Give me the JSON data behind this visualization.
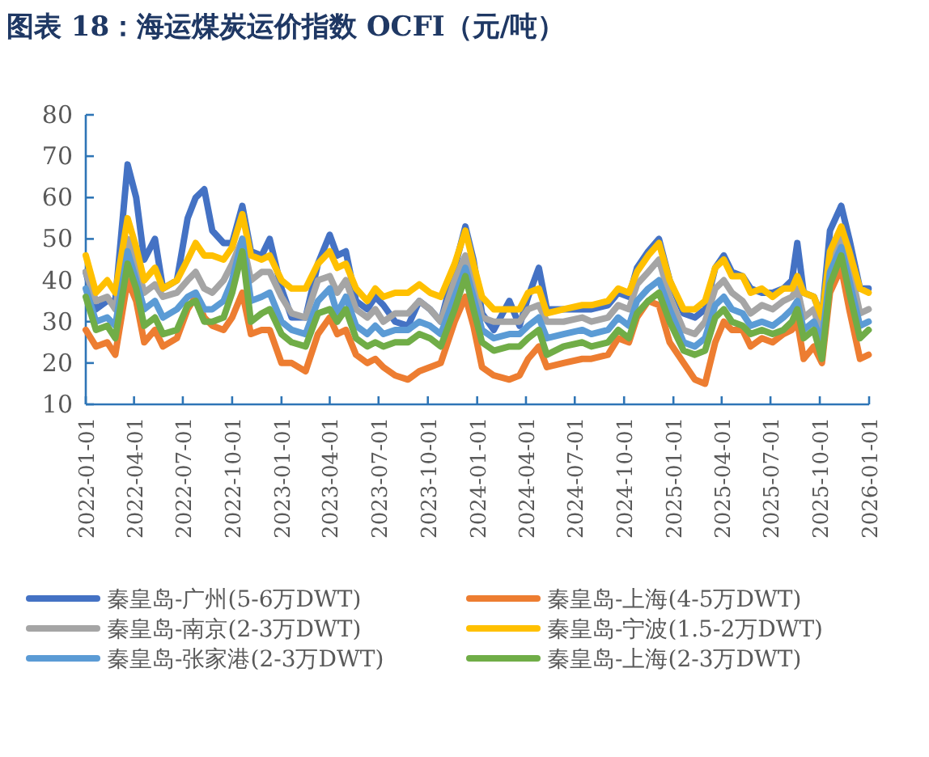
{
  "chart_data": {
    "type": "line",
    "title": "图表 18：海运煤炭运价指数 OCFI（元/吨）",
    "x": [
      "2022-01-01",
      "2022-01-20",
      "2022-02-10",
      "2022-02-25",
      "2022-03-20",
      "2022-04-05",
      "2022-04-20",
      "2022-05-10",
      "2022-05-25",
      "2022-06-20",
      "2022-07-10",
      "2022-07-25",
      "2022-08-10",
      "2022-08-25",
      "2022-09-15",
      "2022-10-01",
      "2022-10-20",
      "2022-11-05",
      "2022-11-25",
      "2022-12-10",
      "2023-01-01",
      "2023-01-20",
      "2023-02-15",
      "2023-03-10",
      "2023-04-01",
      "2023-04-15",
      "2023-05-01",
      "2023-05-20",
      "2023-06-10",
      "2023-06-25",
      "2023-07-10",
      "2023-08-01",
      "2023-08-25",
      "2023-09-15",
      "2023-10-05",
      "2023-10-25",
      "2023-11-20",
      "2023-12-10",
      "2023-12-25",
      "2024-01-10",
      "2024-02-01",
      "2024-03-01",
      "2024-03-20",
      "2024-04-05",
      "2024-04-25",
      "2024-05-10",
      "2024-06-10",
      "2024-07-15",
      "2024-08-01",
      "2024-09-01",
      "2024-09-20",
      "2024-10-10",
      "2024-10-25",
      "2024-11-15",
      "2024-12-05",
      "2024-12-25",
      "2025-01-20",
      "2025-02-10",
      "2025-03-01",
      "2025-03-20",
      "2025-04-05",
      "2025-04-20",
      "2025-05-10",
      "2025-05-25",
      "2025-06-15",
      "2025-07-05",
      "2025-07-25",
      "2025-08-10",
      "2025-08-20",
      "2025-09-01",
      "2025-09-20",
      "2025-10-05",
      "2025-10-20",
      "2025-11-10",
      "2025-11-25",
      "2025-12-15",
      "2025-12-31"
    ],
    "xlim": [
      "2022-01-01",
      "2026-01-01"
    ],
    "xticks": [
      "2022-01-01",
      "2022-04-01",
      "2022-07-01",
      "2022-10-01",
      "2023-01-01",
      "2023-04-01",
      "2023-07-01",
      "2023-10-01",
      "2024-01-01",
      "2024-04-01",
      "2024-07-01",
      "2024-10-01",
      "2025-01-01",
      "2025-04-01",
      "2025-07-01",
      "2025-10-01",
      "2026-01-01"
    ],
    "ylim": [
      10,
      80
    ],
    "yticks": [
      10,
      20,
      30,
      40,
      50,
      60,
      70,
      80
    ],
    "legend": "bottom",
    "line_style": "solid",
    "series": [
      {
        "name": "秦皇岛-广州(5-6万DWT)",
        "color": "#4472c4",
        "values": [
          42,
          33,
          35,
          35,
          68,
          60,
          45,
          50,
          38,
          40,
          55,
          60,
          62,
          52,
          49,
          49,
          58,
          47,
          46,
          50,
          38,
          31,
          31,
          44,
          51,
          46,
          47,
          35,
          33,
          36,
          34,
          30,
          29,
          35,
          33,
          30,
          43,
          53,
          45,
          32,
          28,
          35,
          29,
          36,
          43,
          33,
          33,
          33,
          33,
          34,
          37,
          36,
          43,
          47,
          50,
          40,
          32,
          31,
          33,
          43,
          46,
          42,
          41,
          38,
          37,
          37,
          38,
          40,
          49,
          37,
          36,
          31,
          52,
          58,
          50,
          38,
          38
        ]
      },
      {
        "name": "秦皇岛-上海(4-5万DWT)",
        "color": "#ed7d31",
        "values": [
          28,
          24,
          25,
          22,
          40,
          35,
          25,
          28,
          24,
          26,
          33,
          36,
          31,
          29,
          28,
          31,
          37,
          27,
          28,
          28,
          20,
          20,
          18,
          27,
          31,
          27,
          28,
          22,
          20,
          21,
          19,
          17,
          16,
          18,
          19,
          20,
          30,
          36,
          29,
          19,
          17,
          16,
          17,
          21,
          24,
          19,
          20,
          21,
          21,
          22,
          26,
          25,
          31,
          35,
          34,
          25,
          20,
          16,
          15,
          25,
          30,
          28,
          28,
          24,
          26,
          25,
          27,
          28,
          30,
          21,
          24,
          20,
          37,
          43,
          33,
          21,
          22
        ]
      },
      {
        "name": "秦皇岛-南京(2-3万DWT)",
        "color": "#a5a5a5",
        "values": [
          42,
          35,
          36,
          33,
          50,
          44,
          37,
          39,
          36,
          37,
          40,
          42,
          38,
          37,
          40,
          44,
          50,
          40,
          42,
          42,
          36,
          32,
          31,
          40,
          41,
          37,
          40,
          33,
          31,
          33,
          30,
          32,
          32,
          35,
          33,
          30,
          40,
          46,
          40,
          31,
          30,
          30,
          30,
          33,
          34,
          30,
          30,
          31,
          30,
          31,
          34,
          33,
          39,
          42,
          45,
          36,
          28,
          27,
          30,
          38,
          40,
          37,
          35,
          32,
          34,
          33,
          35,
          36,
          38,
          31,
          33,
          26,
          45,
          50,
          44,
          32,
          33
        ]
      },
      {
        "name": "秦皇岛-宁波(1.5-2万DWT)",
        "color": "#ffc000",
        "values": [
          46,
          37,
          40,
          37,
          55,
          48,
          40,
          43,
          38,
          40,
          45,
          49,
          46,
          46,
          45,
          48,
          56,
          46,
          45,
          46,
          40,
          38,
          38,
          44,
          47,
          43,
          44,
          38,
          35,
          38,
          36,
          37,
          37,
          39,
          37,
          36,
          44,
          52,
          44,
          36,
          33,
          33,
          33,
          37,
          38,
          32,
          33,
          34,
          34,
          35,
          38,
          37,
          42,
          46,
          49,
          40,
          33,
          33,
          35,
          43,
          45,
          41,
          41,
          37,
          38,
          36,
          38,
          38,
          41,
          37,
          36,
          31,
          47,
          53,
          47,
          38,
          37
        ]
      },
      {
        "name": "秦皇岛-张家港(2-3万DWT)",
        "color": "#5b9bd5",
        "values": [
          38,
          30,
          31,
          29,
          47,
          40,
          33,
          35,
          31,
          33,
          36,
          37,
          33,
          33,
          35,
          40,
          50,
          35,
          36,
          37,
          30,
          28,
          27,
          35,
          38,
          32,
          36,
          29,
          27,
          29,
          27,
          28,
          28,
          30,
          29,
          27,
          36,
          43,
          36,
          28,
          26,
          27,
          27,
          29,
          31,
          26,
          27,
          28,
          27,
          28,
          31,
          29,
          35,
          38,
          40,
          33,
          25,
          24,
          26,
          34,
          36,
          33,
          32,
          29,
          30,
          29,
          31,
          33,
          35,
          28,
          30,
          25,
          42,
          48,
          40,
          29,
          30
        ]
      },
      {
        "name": "秦皇岛-上海(2-3万DWT)",
        "color": "#70ad47",
        "values": [
          36,
          28,
          29,
          26,
          44,
          38,
          29,
          31,
          27,
          28,
          34,
          35,
          30,
          30,
          31,
          37,
          47,
          30,
          32,
          33,
          27,
          25,
          24,
          32,
          33,
          30,
          33,
          26,
          24,
          25,
          24,
          25,
          25,
          27,
          26,
          24,
          33,
          41,
          33,
          25,
          23,
          24,
          24,
          26,
          28,
          22,
          24,
          25,
          24,
          25,
          28,
          26,
          32,
          35,
          37,
          30,
          23,
          22,
          23,
          31,
          33,
          30,
          29,
          27,
          28,
          27,
          28,
          30,
          33,
          26,
          28,
          21,
          39,
          46,
          37,
          26,
          28
        ]
      }
    ]
  }
}
